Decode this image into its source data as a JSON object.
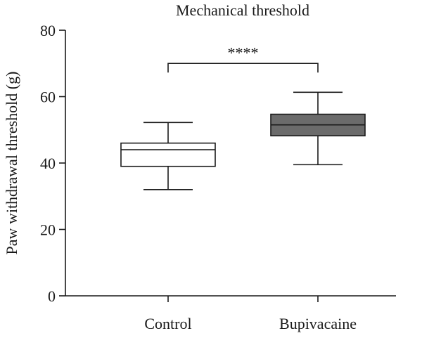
{
  "chart_data": {
    "type": "boxplot",
    "title": "Mechanical threshold",
    "xlabel": "",
    "ylabel": "Paw withdrawal threshold (g)",
    "ylim": [
      0,
      80
    ],
    "yticks": [
      0,
      20,
      40,
      60,
      80
    ],
    "grid": false,
    "categories": [
      "Control",
      "Bupivacaine"
    ],
    "boxes": [
      {
        "category": "Control",
        "min": 32,
        "q1": 39,
        "median": 44,
        "q3": 46,
        "max": 52.2,
        "fill": "#ffffff"
      },
      {
        "category": "Bupivacaine",
        "min": 39.5,
        "q1": 48.2,
        "median": 51.5,
        "q3": 54.7,
        "max": 61.3,
        "fill": "#6b6b6b"
      }
    ],
    "annotations": [
      {
        "text": "****",
        "from": "Control",
        "to": "Bupivacaine",
        "y": 70
      }
    ]
  }
}
